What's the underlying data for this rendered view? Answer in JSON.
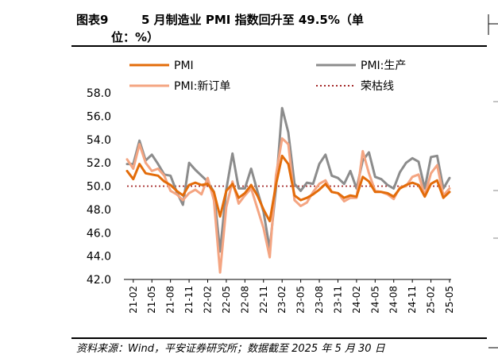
{
  "header": {
    "label": "图表9",
    "title_line1": "5 月制造业 PMI 指数回升至 49.5%（单",
    "title_line2": "位：%）"
  },
  "source": "资料来源：Wind，平安证券研究所；数据截至 2025 年 5 月 30 日",
  "chart_data": {
    "type": "line",
    "title": "",
    "xlabel": "",
    "ylabel": "",
    "ylim": [
      42,
      58
    ],
    "yticks": [
      "42.0",
      "44.0",
      "46.0",
      "48.0",
      "50.0",
      "52.0",
      "54.0",
      "56.0",
      "58.0"
    ],
    "tick_labels": [
      "21-02",
      "21-05",
      "21-08",
      "21-11",
      "22-02",
      "22-05",
      "22-08",
      "22-11",
      "23-02",
      "23-05",
      "23-08",
      "23-11",
      "24-02",
      "24-05",
      "24-08",
      "24-11",
      "25-02",
      "25-05"
    ],
    "x": [
      "21-01",
      "21-02",
      "21-03",
      "21-04",
      "21-05",
      "21-06",
      "21-07",
      "21-08",
      "21-09",
      "21-10",
      "21-11",
      "21-12",
      "22-01",
      "22-02",
      "22-03",
      "22-04",
      "22-05",
      "22-06",
      "22-07",
      "22-08",
      "22-09",
      "22-10",
      "22-11",
      "22-12",
      "23-01",
      "23-02",
      "23-03",
      "23-04",
      "23-05",
      "23-06",
      "23-07",
      "23-08",
      "23-09",
      "23-10",
      "23-11",
      "23-12",
      "24-01",
      "24-02",
      "24-03",
      "24-04",
      "24-05",
      "24-06",
      "24-07",
      "24-08",
      "24-09",
      "24-10",
      "24-11",
      "24-12",
      "25-01",
      "25-02",
      "25-03",
      "25-04",
      "25-05"
    ],
    "legend_position": "top",
    "series": [
      {
        "name": "PMI",
        "color": "#e36c0a",
        "width": 3,
        "values": [
          51.3,
          50.6,
          51.9,
          51.1,
          51.0,
          50.9,
          50.4,
          50.1,
          49.6,
          49.2,
          50.1,
          50.3,
          50.1,
          50.2,
          49.5,
          47.4,
          49.6,
          50.2,
          49.0,
          49.4,
          50.1,
          49.2,
          48.0,
          47.0,
          50.1,
          52.6,
          51.9,
          49.2,
          48.8,
          49.0,
          49.3,
          49.7,
          50.2,
          49.5,
          49.4,
          49.0,
          49.2,
          49.1,
          50.8,
          50.4,
          49.5,
          49.5,
          49.4,
          49.1,
          49.8,
          50.1,
          50.3,
          50.1,
          49.1,
          50.2,
          50.5,
          49.0,
          49.5
        ]
      },
      {
        "name": "PMI:生产",
        "color": "#8c8c8c",
        "width": 3,
        "values": [
          51.9,
          51.9,
          53.9,
          52.2,
          52.7,
          51.9,
          51.0,
          50.9,
          49.5,
          48.4,
          52.0,
          51.4,
          50.9,
          50.4,
          49.5,
          44.4,
          49.7,
          52.8,
          49.8,
          49.8,
          51.5,
          49.6,
          47.8,
          44.6,
          49.8,
          56.7,
          54.6,
          50.2,
          49.6,
          50.3,
          50.2,
          51.9,
          52.7,
          50.9,
          50.7,
          50.2,
          51.3,
          49.8,
          52.2,
          52.9,
          50.8,
          50.6,
          50.1,
          49.8,
          51.2,
          52.0,
          52.4,
          52.1,
          49.8,
          52.5,
          52.6,
          49.8,
          50.7
        ]
      },
      {
        "name": "PMI:新订单",
        "color": "#f4a582",
        "width": 3,
        "values": [
          52.3,
          51.5,
          53.6,
          52.0,
          51.3,
          51.5,
          50.9,
          49.6,
          49.3,
          48.8,
          49.4,
          49.7,
          49.3,
          50.7,
          48.8,
          42.6,
          48.2,
          50.4,
          48.5,
          49.2,
          49.8,
          48.1,
          46.4,
          43.9,
          50.9,
          54.1,
          53.6,
          48.8,
          48.3,
          48.6,
          49.5,
          50.2,
          50.5,
          49.5,
          49.4,
          48.7,
          49.0,
          49.0,
          53.0,
          51.1,
          49.6,
          49.5,
          49.3,
          48.9,
          49.9,
          50.0,
          50.8,
          51.0,
          49.2,
          51.1,
          51.8,
          49.2,
          49.8
        ]
      },
      {
        "name": "荣枯线",
        "color": "#a52a2a",
        "width": 1.8,
        "dash": "2,3",
        "values": [
          50,
          50,
          50,
          50,
          50,
          50,
          50,
          50,
          50,
          50,
          50,
          50,
          50,
          50,
          50,
          50,
          50,
          50,
          50,
          50,
          50,
          50,
          50,
          50,
          50,
          50,
          50,
          50,
          50,
          50,
          50,
          50,
          50,
          50,
          50,
          50,
          50,
          50,
          50,
          50,
          50,
          50,
          50,
          50,
          50,
          50,
          50,
          50,
          50,
          50,
          50,
          50,
          50
        ]
      }
    ]
  }
}
